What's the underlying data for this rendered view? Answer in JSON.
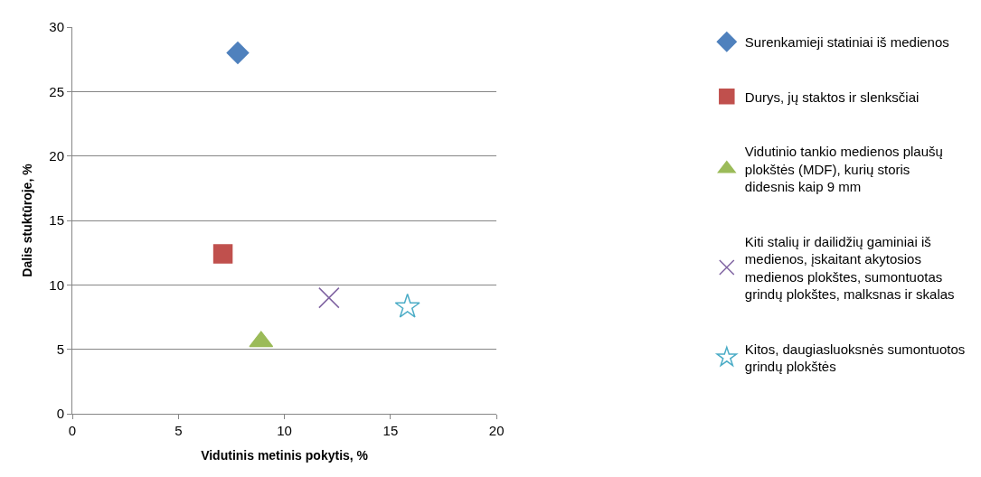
{
  "chart_data": {
    "type": "scatter",
    "xlabel": "Vidutinis metinis pokytis, %",
    "ylabel": "Dalis stuktūroje, %",
    "xlim": [
      0,
      20
    ],
    "xticks": [
      0,
      5,
      10,
      15,
      20
    ],
    "ylim": [
      0,
      30
    ],
    "yticks": [
      0,
      5,
      10,
      15,
      20,
      25,
      30
    ],
    "grid": "y",
    "legend": "right",
    "series": [
      {
        "name": "Surenkamieji statiniai iš medienos",
        "color": "#4f81bd",
        "marker": "diamond",
        "x": [
          7.8
        ],
        "values": [
          28.0
        ]
      },
      {
        "name": "Durys, jų staktos ir slenksčiai",
        "color": "#c0504d",
        "marker": "square",
        "x": [
          7.1
        ],
        "values": [
          12.4
        ]
      },
      {
        "name": "Vidutinio tankio medienos plaušų plokštės (MDF), kurių storis didesnis kaip 9 mm",
        "color": "#9bbb59",
        "marker": "triangle",
        "x": [
          8.9
        ],
        "values": [
          5.6
        ]
      },
      {
        "name": "Kiti stalių ir dailidžių gaminiai iš medienos, įskaitant akytosios medienos plokštes, sumontuotas grindų plokštes, malksnas ir skalas",
        "color": "#8064a2",
        "marker": "cross",
        "x": [
          12.1
        ],
        "values": [
          9.0
        ]
      },
      {
        "name": "Kitos, daugiasluoksnės sumontuotos grindų plokštės",
        "color": "#4bacc6",
        "marker": "star",
        "x": [
          15.8
        ],
        "values": [
          8.3
        ]
      }
    ]
  }
}
